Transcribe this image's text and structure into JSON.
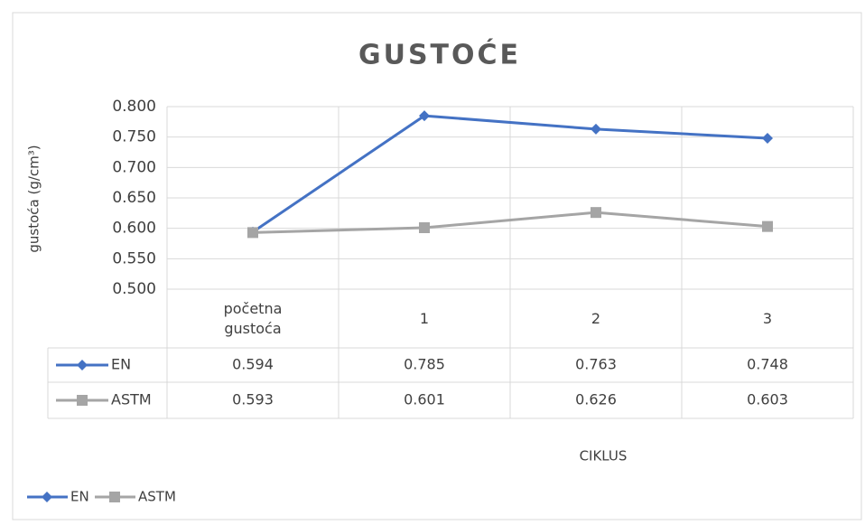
{
  "chart_data": {
    "type": "line",
    "title": "GUSTOĆE",
    "y_label": "gustoća (g/cm³)",
    "x_label": "CIKLUS",
    "categories": [
      "početna gustoća",
      "1",
      "2",
      "3"
    ],
    "series": [
      {
        "name": "EN",
        "color": "#4472c4",
        "marker": "diamond",
        "values": [
          0.594,
          0.785,
          0.763,
          0.748
        ]
      },
      {
        "name": "ASTM",
        "color": "#a5a5a5",
        "marker": "square",
        "values": [
          0.593,
          0.601,
          0.626,
          0.603
        ]
      }
    ],
    "ylim": [
      0.5,
      0.8
    ],
    "yticks": [
      {
        "value": 0.5,
        "label": "0.500"
      },
      {
        "value": 0.55,
        "label": "0.550"
      },
      {
        "value": 0.6,
        "label": "0.600"
      },
      {
        "value": 0.65,
        "label": "0.650"
      },
      {
        "value": 0.7,
        "label": "0.700"
      },
      {
        "value": 0.75,
        "label": "0.750"
      },
      {
        "value": 0.8,
        "label": "0.800"
      }
    ],
    "grid": true,
    "data_table": true,
    "legend": "bottom-left"
  }
}
